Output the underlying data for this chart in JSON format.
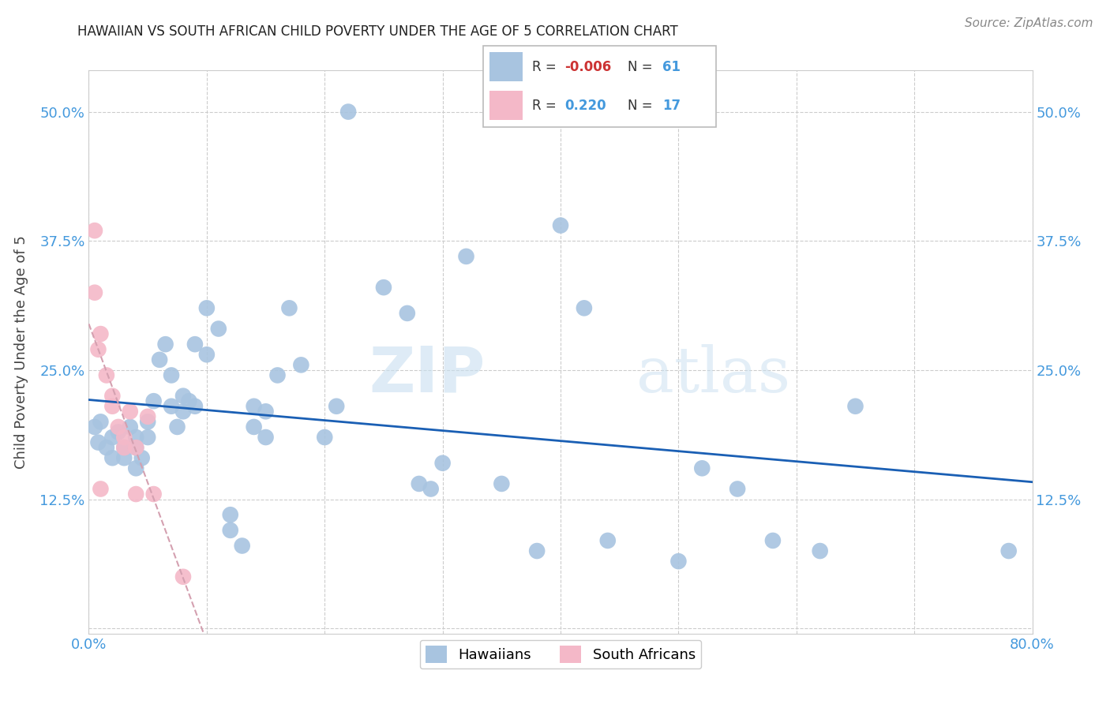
{
  "title": "HAWAIIAN VS SOUTH AFRICAN CHILD POVERTY UNDER THE AGE OF 5 CORRELATION CHART",
  "source": "Source: ZipAtlas.com",
  "ylabel": "Child Poverty Under the Age of 5",
  "xlim": [
    0.0,
    0.8
  ],
  "ylim": [
    -0.005,
    0.54
  ],
  "yticks": [
    0.0,
    0.125,
    0.25,
    0.375,
    0.5
  ],
  "ytick_labels": [
    "",
    "12.5%",
    "25.0%",
    "37.5%",
    "50.0%"
  ],
  "xticks": [
    0.0,
    0.1,
    0.2,
    0.3,
    0.4,
    0.5,
    0.6,
    0.7,
    0.8
  ],
  "hawaiian_color": "#a8c4e0",
  "south_african_color": "#f4b8c8",
  "trend_line_color_hawaiian": "#1a5fb4",
  "trend_line_color_sa": "#d4a0b0",
  "legend_R_hawaiian": "-0.006",
  "legend_N_hawaiian": "61",
  "legend_R_sa": "0.220",
  "legend_N_sa": "17",
  "watermark_zip": "ZIP",
  "watermark_atlas": "atlas",
  "hawaiian_x": [
    0.005,
    0.008,
    0.01,
    0.015,
    0.02,
    0.02,
    0.025,
    0.03,
    0.03,
    0.035,
    0.04,
    0.04,
    0.04,
    0.045,
    0.05,
    0.05,
    0.055,
    0.06,
    0.065,
    0.07,
    0.07,
    0.075,
    0.08,
    0.08,
    0.085,
    0.09,
    0.09,
    0.1,
    0.1,
    0.11,
    0.12,
    0.12,
    0.13,
    0.14,
    0.14,
    0.15,
    0.15,
    0.16,
    0.17,
    0.18,
    0.2,
    0.21,
    0.22,
    0.25,
    0.27,
    0.28,
    0.29,
    0.3,
    0.32,
    0.35,
    0.38,
    0.4,
    0.42,
    0.44,
    0.5,
    0.52,
    0.55,
    0.58,
    0.62,
    0.65,
    0.78
  ],
  "hawaiian_y": [
    0.195,
    0.18,
    0.2,
    0.175,
    0.185,
    0.165,
    0.19,
    0.175,
    0.165,
    0.195,
    0.185,
    0.155,
    0.175,
    0.165,
    0.2,
    0.185,
    0.22,
    0.26,
    0.275,
    0.245,
    0.215,
    0.195,
    0.225,
    0.21,
    0.22,
    0.275,
    0.215,
    0.31,
    0.265,
    0.29,
    0.095,
    0.11,
    0.08,
    0.215,
    0.195,
    0.185,
    0.21,
    0.245,
    0.31,
    0.255,
    0.185,
    0.215,
    0.5,
    0.33,
    0.305,
    0.14,
    0.135,
    0.16,
    0.36,
    0.14,
    0.075,
    0.39,
    0.31,
    0.085,
    0.065,
    0.155,
    0.135,
    0.085,
    0.075,
    0.215,
    0.075
  ],
  "sa_x": [
    0.005,
    0.005,
    0.008,
    0.01,
    0.01,
    0.015,
    0.02,
    0.02,
    0.025,
    0.03,
    0.03,
    0.035,
    0.04,
    0.04,
    0.05,
    0.055,
    0.08
  ],
  "sa_y": [
    0.385,
    0.325,
    0.27,
    0.285,
    0.135,
    0.245,
    0.225,
    0.215,
    0.195,
    0.185,
    0.175,
    0.21,
    0.175,
    0.13,
    0.205,
    0.13,
    0.05
  ]
}
